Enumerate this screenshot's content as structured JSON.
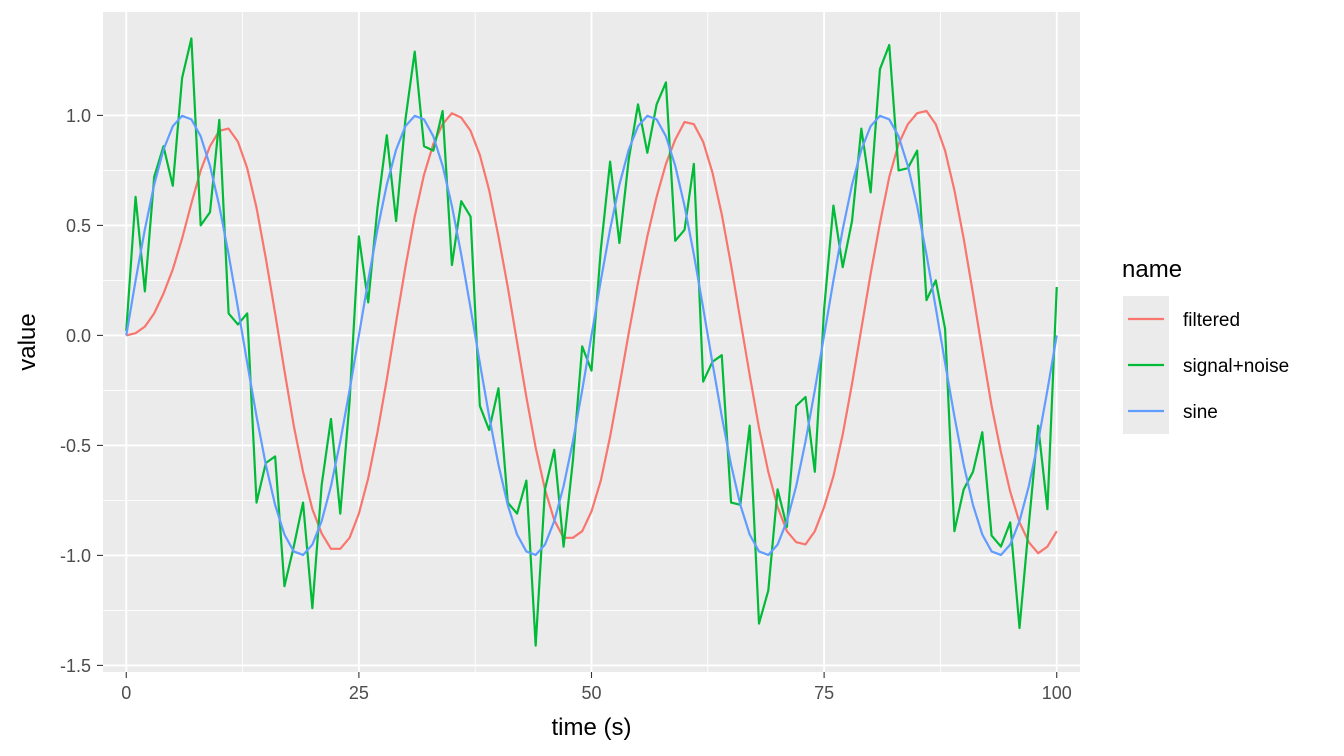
{
  "chart_data": {
    "type": "line",
    "title": "",
    "xlabel": "time (s)",
    "ylabel": "value",
    "xlim": [
      -2.5,
      102.5
    ],
    "ylim": [
      -1.53,
      1.47
    ],
    "x_ticks": [
      0,
      25,
      50,
      75,
      100
    ],
    "y_ticks": [
      -1.5,
      -1.0,
      -0.5,
      0.0,
      0.5,
      1.0
    ],
    "x_tick_labels": [
      "0",
      "25",
      "50",
      "75",
      "100"
    ],
    "y_tick_labels": [
      "-1.5",
      "-1.0",
      "-0.5",
      "0.0",
      "0.5",
      "1.0"
    ],
    "grid": true,
    "legend": {
      "title": "name",
      "placement": "right",
      "entries": [
        "filtered",
        "signal+noise",
        "sine"
      ]
    },
    "colors": {
      "filtered": "#F8766D",
      "signal+noise": "#00BA38",
      "sine": "#619CFF",
      "panel": "#EBEBEB",
      "grid": "#FFFFFF"
    },
    "x": [
      0,
      1,
      2,
      3,
      4,
      5,
      6,
      7,
      8,
      9,
      10,
      11,
      12,
      13,
      14,
      15,
      16,
      17,
      18,
      19,
      20,
      21,
      22,
      23,
      24,
      25,
      26,
      27,
      28,
      29,
      30,
      31,
      32,
      33,
      34,
      35,
      36,
      37,
      38,
      39,
      40,
      41,
      42,
      43,
      44,
      45,
      46,
      47,
      48,
      49,
      50,
      51,
      52,
      53,
      54,
      55,
      56,
      57,
      58,
      59,
      60,
      61,
      62,
      63,
      64,
      65,
      66,
      67,
      68,
      69,
      70,
      71,
      72,
      73,
      74,
      75,
      76,
      77,
      78,
      79,
      80,
      81,
      82,
      83,
      84,
      85,
      86,
      87,
      88,
      89,
      90,
      91,
      92,
      93,
      94,
      95,
      96,
      97,
      98,
      99,
      100
    ],
    "series": [
      {
        "name": "sine",
        "values": [
          0,
          0.249,
          0.482,
          0.685,
          0.844,
          0.951,
          0.998,
          0.982,
          0.905,
          0.771,
          0.588,
          0.368,
          0.125,
          -0.125,
          -0.368,
          -0.588,
          -0.771,
          -0.905,
          -0.982,
          -0.998,
          -0.951,
          -0.844,
          -0.685,
          -0.482,
          -0.249,
          0,
          0.249,
          0.482,
          0.685,
          0.844,
          0.951,
          0.998,
          0.982,
          0.905,
          0.771,
          0.588,
          0.368,
          0.125,
          -0.125,
          -0.368,
          -0.588,
          -0.771,
          -0.905,
          -0.982,
          -0.998,
          -0.951,
          -0.844,
          -0.685,
          -0.482,
          -0.249,
          0,
          0.249,
          0.482,
          0.685,
          0.844,
          0.951,
          0.998,
          0.982,
          0.905,
          0.771,
          0.588,
          0.368,
          0.125,
          -0.125,
          -0.368,
          -0.588,
          -0.771,
          -0.905,
          -0.982,
          -0.998,
          -0.951,
          -0.844,
          -0.685,
          -0.482,
          -0.249,
          0,
          0.249,
          0.482,
          0.685,
          0.844,
          0.951,
          0.998,
          0.982,
          0.905,
          0.771,
          0.588,
          0.368,
          0.125,
          -0.125,
          -0.368,
          -0.588,
          -0.771,
          -0.905,
          -0.982,
          -0.998,
          -0.951,
          -0.844,
          -0.685,
          -0.482,
          -0.249,
          0
        ]
      },
      {
        "name": "signal+noise",
        "values": [
          0.02,
          0.63,
          0.2,
          0.72,
          0.86,
          0.68,
          1.17,
          1.35,
          0.5,
          0.56,
          0.98,
          0.1,
          0.05,
          0.1,
          -0.76,
          -0.58,
          -0.55,
          -1.14,
          -0.96,
          -0.76,
          -1.24,
          -0.68,
          -0.38,
          -0.81,
          -0.3,
          0.45,
          0.15,
          0.58,
          0.91,
          0.52,
          0.98,
          1.29,
          0.86,
          0.84,
          1.02,
          0.32,
          0.61,
          0.54,
          -0.32,
          -0.43,
          -0.24,
          -0.76,
          -0.81,
          -0.66,
          -1.41,
          -0.7,
          -0.52,
          -0.96,
          -0.57,
          -0.05,
          -0.16,
          0.39,
          0.79,
          0.42,
          0.8,
          1.05,
          0.83,
          1.05,
          1.15,
          0.43,
          0.48,
          0.78,
          -0.21,
          -0.12,
          -0.09,
          -0.76,
          -0.77,
          -0.41,
          -1.31,
          -1.16,
          -0.7,
          -0.87,
          -0.32,
          -0.28,
          -0.62,
          0.12,
          0.59,
          0.31,
          0.52,
          0.94,
          0.65,
          1.21,
          1.32,
          0.75,
          0.76,
          0.84,
          0.16,
          0.25,
          0.03,
          -0.89,
          -0.7,
          -0.62,
          -0.44,
          -0.91,
          -0.96,
          -0.85,
          -1.33,
          -0.86,
          -0.41,
          -0.79,
          0.22
        ]
      },
      {
        "name": "filtered",
        "values": [
          0,
          0.01,
          0.04,
          0.1,
          0.19,
          0.3,
          0.44,
          0.6,
          0.75,
          0.86,
          0.93,
          0.94,
          0.88,
          0.76,
          0.58,
          0.35,
          0.1,
          -0.16,
          -0.41,
          -0.62,
          -0.79,
          -0.9,
          -0.97,
          -0.97,
          -0.92,
          -0.81,
          -0.65,
          -0.44,
          -0.2,
          0.06,
          0.31,
          0.54,
          0.73,
          0.87,
          0.96,
          1.01,
          0.99,
          0.93,
          0.82,
          0.66,
          0.45,
          0.22,
          -0.03,
          -0.28,
          -0.51,
          -0.7,
          -0.84,
          -0.92,
          -0.92,
          -0.89,
          -0.8,
          -0.66,
          -0.46,
          -0.23,
          0.01,
          0.24,
          0.45,
          0.63,
          0.78,
          0.89,
          0.97,
          0.96,
          0.88,
          0.74,
          0.55,
          0.32,
          0.07,
          -0.18,
          -0.42,
          -0.62,
          -0.78,
          -0.89,
          -0.94,
          -0.95,
          -0.89,
          -0.78,
          -0.64,
          -0.45,
          -0.22,
          0.03,
          0.28,
          0.51,
          0.72,
          0.87,
          0.96,
          1.01,
          1.02,
          0.96,
          0.84,
          0.66,
          0.44,
          0.19,
          -0.07,
          -0.32,
          -0.53,
          -0.71,
          -0.85,
          -0.94,
          -0.99,
          -0.96,
          -0.89
        ]
      }
    ]
  }
}
